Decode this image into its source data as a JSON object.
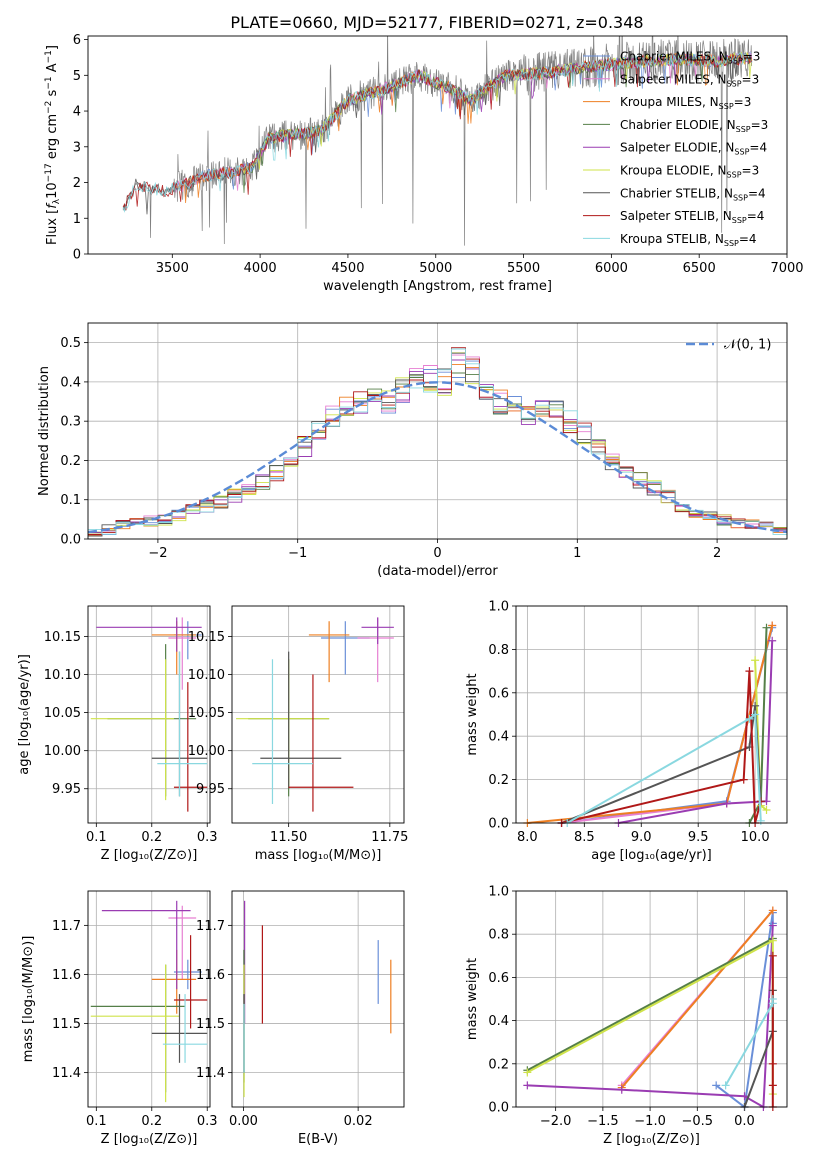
{
  "figure_title": "PLATE=0660, MJD=52177, FIBERID=0271, z=0.348",
  "colors": {
    "Chabrier MILES": "#6a8fd8",
    "Salpeter MILES": "#e67fd2",
    "Kroupa MILES": "#ee7f22",
    "Chabrier ELODIE": "#557f48",
    "Salpeter ELODIE": "#9a3cb2",
    "Kroupa ELODIE": "#cfe34a",
    "Chabrier STELIB": "#555555",
    "Salpeter STELIB": "#b01818",
    "Kroupa STELIB": "#8ad8e0",
    "data": "#808080",
    "normal": "#5b8bd6"
  },
  "chart_data": [
    {
      "id": "spectrum",
      "type": "line",
      "title": "PLATE=0660, MJD=52177, FIBERID=0271, z=0.348",
      "xlabel": "wavelength [Angstrom, rest frame]",
      "ylabel": "Flux [f_λ 10^{-17} erg cm^{-2} s^{-1} A^{-1}]",
      "xlim": [
        3020,
        7000
      ],
      "ylim": [
        0,
        6.1
      ],
      "xticks": [
        "3500",
        "4000",
        "4500",
        "5000",
        "5500",
        "6000",
        "6500",
        "7000"
      ],
      "yticks": [
        "0",
        "1",
        "2",
        "3",
        "4",
        "5",
        "6"
      ],
      "legend": [
        "Chabrier MILES, N_SSP=3",
        "Salpeter MILES, N_SSP=3",
        "Kroupa MILES, N_SSP=3",
        "Chabrier ELODIE, N_SSP=3",
        "Salpeter ELODIE, N_SSP=4",
        "Kroupa ELODIE, N_SSP=3",
        "Chabrier STELIB, N_SSP=4",
        "Salpeter STELIB, N_SSP=4",
        "Kroupa STELIB, N_SSP=4"
      ],
      "continuum": {
        "x": [
          3220,
          3290,
          3380,
          3450,
          3550,
          3700,
          3850,
          3950,
          4050,
          4200,
          4350,
          4500,
          4700,
          4900,
          5100,
          5200,
          5400,
          5600,
          5800,
          6000,
          6200,
          6400,
          6600,
          6800
        ],
        "y": [
          1.2,
          1.95,
          1.85,
          1.75,
          1.9,
          2.2,
          2.3,
          2.4,
          3.25,
          3.35,
          3.45,
          4.3,
          4.6,
          5.0,
          4.6,
          4.3,
          5.0,
          5.05,
          5.2,
          5.3,
          5.4,
          5.45,
          5.4,
          5.5
        ]
      },
      "grid": false,
      "legend_position": "upper right"
    },
    {
      "id": "residuals",
      "type": "line",
      "xlabel": "(data-model)/error",
      "ylabel": "Normed distribution",
      "xlim": [
        -2.5,
        2.5
      ],
      "ylim": [
        0,
        0.55
      ],
      "xticks": [
        "−2",
        "−1",
        "0",
        "1",
        "2"
      ],
      "yticks": [
        "0.0",
        "0.1",
        "0.2",
        "0.3",
        "0.4",
        "0.5"
      ],
      "legend": [
        "𝒩(0, 1)"
      ],
      "bin_edges": [
        -2.5,
        -2.4,
        -2.3,
        -2.2,
        -2.1,
        -2.0,
        -1.9,
        -1.8,
        -1.7,
        -1.6,
        -1.5,
        -1.4,
        -1.3,
        -1.2,
        -1.1,
        -1.0,
        -0.9,
        -0.8,
        -0.7,
        -0.6,
        -0.5,
        -0.4,
        -0.3,
        -0.2,
        -0.1,
        0.0,
        0.1,
        0.2,
        0.3,
        0.4,
        0.5,
        0.6,
        0.7,
        0.8,
        0.9,
        1.0,
        1.1,
        1.2,
        1.3,
        1.4,
        1.5,
        1.6,
        1.7,
        1.8,
        1.9,
        2.0,
        2.1,
        2.2,
        2.3,
        2.4,
        2.5
      ],
      "histogram_mean": [
        0.02,
        0.025,
        0.035,
        0.04,
        0.045,
        0.05,
        0.06,
        0.075,
        0.085,
        0.095,
        0.11,
        0.125,
        0.145,
        0.17,
        0.2,
        0.235,
        0.28,
        0.31,
        0.33,
        0.35,
        0.36,
        0.35,
        0.38,
        0.4,
        0.41,
        0.4,
        0.45,
        0.43,
        0.39,
        0.35,
        0.35,
        0.32,
        0.33,
        0.34,
        0.3,
        0.27,
        0.24,
        0.2,
        0.17,
        0.15,
        0.13,
        0.11,
        0.08,
        0.07,
        0.06,
        0.05,
        0.04,
        0.035,
        0.03,
        0.025
      ],
      "grid": true,
      "legend_position": "upper right"
    },
    {
      "id": "age-vs-Z",
      "type": "scatter",
      "xlabel": "Z [log₁₀(Z/Z⊙)]",
      "ylabel": "age  [log₁₀(age/yr)]",
      "xlim": [
        0.085,
        0.305
      ],
      "ylim": [
        9.905,
        10.19
      ],
      "xticks": [
        "0.1",
        "0.2",
        "0.3"
      ],
      "yticks": [
        "9.95",
        "10.00",
        "10.05",
        "10.10",
        "10.15"
      ],
      "points": [
        {
          "model": "Chabrier MILES",
          "x": 0.265,
          "y": 10.152,
          "xerr": [
            0.24,
            0.29
          ],
          "yerr": [
            10.12,
            10.17
          ]
        },
        {
          "model": "Salpeter MILES",
          "x": 0.255,
          "y": 10.148,
          "xerr": [
            0.23,
            0.28
          ],
          "yerr": [
            10.08,
            10.175
          ]
        },
        {
          "model": "Kroupa MILES",
          "x": 0.245,
          "y": 10.152,
          "xerr": [
            0.2,
            0.28
          ],
          "yerr": [
            10.1,
            10.17
          ]
        },
        {
          "model": "Chabrier ELODIE",
          "x": 0.225,
          "y": 10.042,
          "xerr": [
            0.12,
            0.28
          ],
          "yerr": [
            9.94,
            10.14
          ]
        },
        {
          "model": "Salpeter ELODIE",
          "x": 0.245,
          "y": 10.162,
          "xerr": [
            0.1,
            0.29
          ],
          "yerr": [
            10.13,
            10.175
          ]
        },
        {
          "model": "Kroupa ELODIE",
          "x": 0.225,
          "y": 10.042,
          "xerr": [
            0.09,
            0.24
          ],
          "yerr": [
            9.935,
            10.12
          ]
        },
        {
          "model": "Chabrier STELIB",
          "x": 0.25,
          "y": 9.99,
          "xerr": [
            0.2,
            0.3
          ],
          "yerr": [
            9.94,
            10.13
          ]
        },
        {
          "model": "Salpeter STELIB",
          "x": 0.265,
          "y": 9.952,
          "xerr": [
            0.24,
            0.3
          ],
          "yerr": [
            9.92,
            10.09
          ]
        },
        {
          "model": "Kroupa STELIB",
          "x": 0.25,
          "y": 9.983,
          "xerr": [
            0.21,
            0.3
          ],
          "yerr": [
            9.94,
            10.13
          ]
        }
      ],
      "grid": true
    },
    {
      "id": "age-vs-mass",
      "type": "scatter",
      "xlabel": "mass [log₁₀(M/M⊙)]",
      "ylabel": "",
      "xlim": [
        11.36,
        11.785
      ],
      "ylim": [
        9.905,
        10.19
      ],
      "xticks": [
        "11.50",
        "11.75"
      ],
      "yticks": [
        "9.95",
        "10.00",
        "10.05",
        "10.10",
        "10.15"
      ],
      "points": [
        {
          "model": "Chabrier MILES",
          "x": 11.64,
          "y": 10.148,
          "xerr": [
            11.58,
            11.7
          ],
          "yerr": [
            10.1,
            10.17
          ]
        },
        {
          "model": "Salpeter MILES",
          "x": 11.72,
          "y": 10.148,
          "xerr": [
            11.67,
            11.76
          ],
          "yerr": [
            10.09,
            10.175
          ]
        },
        {
          "model": "Kroupa MILES",
          "x": 11.6,
          "y": 10.152,
          "xerr": [
            11.55,
            11.65
          ],
          "yerr": [
            10.09,
            10.17
          ]
        },
        {
          "model": "Chabrier ELODIE",
          "x": 11.5,
          "y": 10.042,
          "xerr": [
            11.4,
            11.6
          ],
          "yerr": [
            9.94,
            10.12
          ]
        },
        {
          "model": "Salpeter ELODIE",
          "x": 11.72,
          "y": 10.162,
          "xerr": [
            11.68,
            11.76
          ],
          "yerr": [
            10.14,
            10.175
          ]
        },
        {
          "model": "Kroupa ELODIE",
          "x": 11.5,
          "y": 10.042,
          "xerr": [
            11.37,
            11.6
          ],
          "yerr": [
            9.95,
            10.12
          ]
        },
        {
          "model": "Chabrier STELIB",
          "x": 11.5,
          "y": 9.99,
          "xerr": [
            11.43,
            11.63
          ],
          "yerr": [
            9.95,
            10.13
          ]
        },
        {
          "model": "Salpeter STELIB",
          "x": 11.56,
          "y": 9.952,
          "xerr": [
            11.5,
            11.66
          ],
          "yerr": [
            9.92,
            10.1
          ]
        },
        {
          "model": "Kroupa STELIB",
          "x": 11.46,
          "y": 9.983,
          "xerr": [
            11.41,
            11.56
          ],
          "yerr": [
            9.93,
            10.12
          ]
        }
      ],
      "grid": true
    },
    {
      "id": "weight-vs-age",
      "type": "line",
      "xlabel": "age  [log₁₀(age/yr)]",
      "ylabel": "mass weight",
      "xlim": [
        7.9,
        10.28
      ],
      "ylim": [
        0,
        1.0
      ],
      "xticks": [
        "8.0",
        "8.5",
        "9.0",
        "9.5",
        "10.0"
      ],
      "yticks": [
        "0.0",
        "0.2",
        "0.4",
        "0.6",
        "0.8",
        "1.0"
      ],
      "series": [
        {
          "model": "Chabrier MILES",
          "x": [
            8.3,
            9.75,
            10.15
          ],
          "y": [
            0.0,
            0.1,
            0.9
          ]
        },
        {
          "model": "Salpeter MILES",
          "x": [
            8.3,
            9.75,
            10.15
          ],
          "y": [
            0.0,
            0.09,
            0.91
          ]
        },
        {
          "model": "Kroupa MILES",
          "x": [
            8.0,
            9.75,
            10.15
          ],
          "y": [
            0.0,
            0.09,
            0.91
          ]
        },
        {
          "model": "Chabrier ELODIE",
          "x": [
            9.95,
            10.05,
            10.1
          ],
          "y": [
            0.0,
            0.1,
            0.9
          ]
        },
        {
          "model": "Salpeter ELODIE",
          "x": [
            8.8,
            9.75,
            10.1,
            10.15
          ],
          "y": [
            0.0,
            0.09,
            0.1,
            0.84
          ]
        },
        {
          "model": "Kroupa ELODIE",
          "x": [
            10.0,
            10.05,
            10.1
          ],
          "y": [
            0.75,
            0.08,
            0.06
          ]
        },
        {
          "model": "Chabrier STELIB",
          "x": [
            8.3,
            9.95,
            10.0,
            10.05
          ],
          "y": [
            0.0,
            0.35,
            0.54,
            0.1
          ]
        },
        {
          "model": "Salpeter STELIB",
          "x": [
            8.3,
            9.9,
            9.95,
            10.0,
            10.05
          ],
          "y": [
            0.0,
            0.2,
            0.7,
            0.0,
            0.1
          ]
        },
        {
          "model": "Kroupa STELIB",
          "x": [
            8.35,
            9.95,
            10.0,
            10.05
          ],
          "y": [
            0.0,
            0.48,
            0.5,
            0.01
          ]
        }
      ],
      "grid": true
    },
    {
      "id": "mass-vs-Z",
      "type": "scatter",
      "xlabel": "Z [log₁₀(Z/Z⊙)]",
      "ylabel": "mass [log₁₀(M/M⊙)]",
      "xlim": [
        0.085,
        0.305
      ],
      "ylim": [
        11.33,
        11.77
      ],
      "xticks": [
        "0.1",
        "0.2",
        "0.3"
      ],
      "yticks": [
        "11.4",
        "11.5",
        "11.6",
        "11.7"
      ],
      "points": [
        {
          "model": "Chabrier MILES",
          "x": 0.265,
          "y": 11.605,
          "xerr": [
            0.24,
            0.29
          ],
          "yerr": [
            11.57,
            11.63
          ]
        },
        {
          "model": "Salpeter MILES",
          "x": 0.255,
          "y": 11.715,
          "xerr": [
            0.23,
            0.28
          ],
          "yerr": [
            11.59,
            11.74
          ]
        },
        {
          "model": "Kroupa MILES",
          "x": 0.245,
          "y": 11.59,
          "xerr": [
            0.2,
            0.28
          ],
          "yerr": [
            11.52,
            11.65
          ]
        },
        {
          "model": "Chabrier ELODIE",
          "x": 0.225,
          "y": 11.535,
          "xerr": [
            0.09,
            0.26
          ],
          "yerr": [
            11.36,
            11.62
          ]
        },
        {
          "model": "Salpeter ELODIE",
          "x": 0.245,
          "y": 11.73,
          "xerr": [
            0.11,
            0.27
          ],
          "yerr": [
            11.57,
            11.75
          ]
        },
        {
          "model": "Kroupa ELODIE",
          "x": 0.225,
          "y": 11.515,
          "xerr": [
            0.09,
            0.25
          ],
          "yerr": [
            11.34,
            11.62
          ]
        },
        {
          "model": "Chabrier STELIB",
          "x": 0.25,
          "y": 11.48,
          "xerr": [
            0.2,
            0.3
          ],
          "yerr": [
            11.42,
            11.56
          ]
        },
        {
          "model": "Salpeter STELIB",
          "x": 0.27,
          "y": 11.548,
          "xerr": [
            0.24,
            0.3
          ],
          "yerr": [
            11.49,
            11.68
          ]
        },
        {
          "model": "Kroupa STELIB",
          "x": 0.26,
          "y": 11.458,
          "xerr": [
            0.22,
            0.3
          ],
          "yerr": [
            11.42,
            11.56
          ]
        }
      ],
      "grid": true
    },
    {
      "id": "mass-vs-EBV",
      "type": "scatter",
      "xlabel": "E(B-V)",
      "ylabel": "",
      "xlim": [
        -0.002,
        0.028
      ],
      "ylim": [
        11.33,
        11.77
      ],
      "xticks": [
        "0.00",
        "0.02"
      ],
      "yticks": [
        "11.4",
        "11.5",
        "11.6",
        "11.7"
      ],
      "points": [
        {
          "model": "Chabrier MILES",
          "x": 0.0235,
          "y": 11.6,
          "yerr": [
            11.54,
            11.67
          ]
        },
        {
          "model": "Kroupa MILES",
          "x": 0.0257,
          "y": 11.555,
          "yerr": [
            11.48,
            11.63
          ]
        },
        {
          "model": "Salpeter STELIB",
          "x": 0.0033,
          "y": 11.6,
          "yerr": [
            11.5,
            11.7
          ]
        },
        {
          "model": "Salpeter ELODIE",
          "x": 0.0002,
          "y": 11.6,
          "yerr": [
            11.5,
            11.75
          ]
        },
        {
          "model": "Chabrier ELODIE",
          "x": 0.0001,
          "y": 11.52,
          "yerr": [
            11.38,
            11.65
          ]
        },
        {
          "model": "Kroupa ELODIE",
          "x": 0.0001,
          "y": 11.45,
          "yerr": [
            11.35,
            11.62
          ]
        },
        {
          "model": "Chabrier STELIB",
          "x": 0.0001,
          "y": 11.48,
          "yerr": [
            11.4,
            11.56
          ]
        },
        {
          "model": "Kroupa STELIB",
          "x": 0.0001,
          "y": 11.46,
          "yerr": [
            11.4,
            11.54
          ]
        }
      ],
      "grid": true
    },
    {
      "id": "weight-vs-Z",
      "type": "line",
      "xlabel": "Z [log₁₀(Z/Z⊙)]",
      "ylabel": "mass weight",
      "xlim": [
        -2.42,
        0.45
      ],
      "ylim": [
        0,
        1.0
      ],
      "xticks": [
        "−2.0",
        "−1.5",
        "−1.0",
        "−0.5",
        "0.0"
      ],
      "yticks": [
        "0.0",
        "0.2",
        "0.4",
        "0.6",
        "0.8",
        "1.0"
      ],
      "series": [
        {
          "model": "Chabrier MILES",
          "x": [
            -0.3,
            0.0,
            0.3,
            0.3
          ],
          "y": [
            0.1,
            0.0,
            0.9,
            0.85
          ]
        },
        {
          "model": "Salpeter MILES",
          "x": [
            -1.3,
            0.3
          ],
          "y": [
            0.1,
            0.91
          ]
        },
        {
          "model": "Kroupa MILES",
          "x": [
            -1.3,
            0.3
          ],
          "y": [
            0.09,
            0.91
          ]
        },
        {
          "model": "Chabrier ELODIE",
          "x": [
            -2.3,
            0.3
          ],
          "y": [
            0.17,
            0.78
          ]
        },
        {
          "model": "Salpeter ELODIE",
          "x": [
            -2.3,
            -1.3,
            0.0,
            0.2,
            0.3
          ],
          "y": [
            0.1,
            0.08,
            0.05,
            0.0,
            0.84
          ]
        },
        {
          "model": "Kroupa ELODIE",
          "x": [
            -2.3,
            0.3,
            0.3
          ],
          "y": [
            0.16,
            0.77,
            0.06
          ]
        },
        {
          "model": "Chabrier STELIB",
          "x": [
            0.0,
            0.3,
            0.3
          ],
          "y": [
            0.0,
            0.35,
            0.54
          ]
        },
        {
          "model": "Salpeter STELIB",
          "x": [
            0.3,
            0.3,
            0.3,
            0.3
          ],
          "y": [
            0.0,
            0.2,
            0.7,
            0.1
          ]
        },
        {
          "model": "Kroupa STELIB",
          "x": [
            -0.2,
            0.3,
            0.3
          ],
          "y": [
            0.1,
            0.48,
            0.5
          ]
        }
      ],
      "grid": true
    }
  ]
}
